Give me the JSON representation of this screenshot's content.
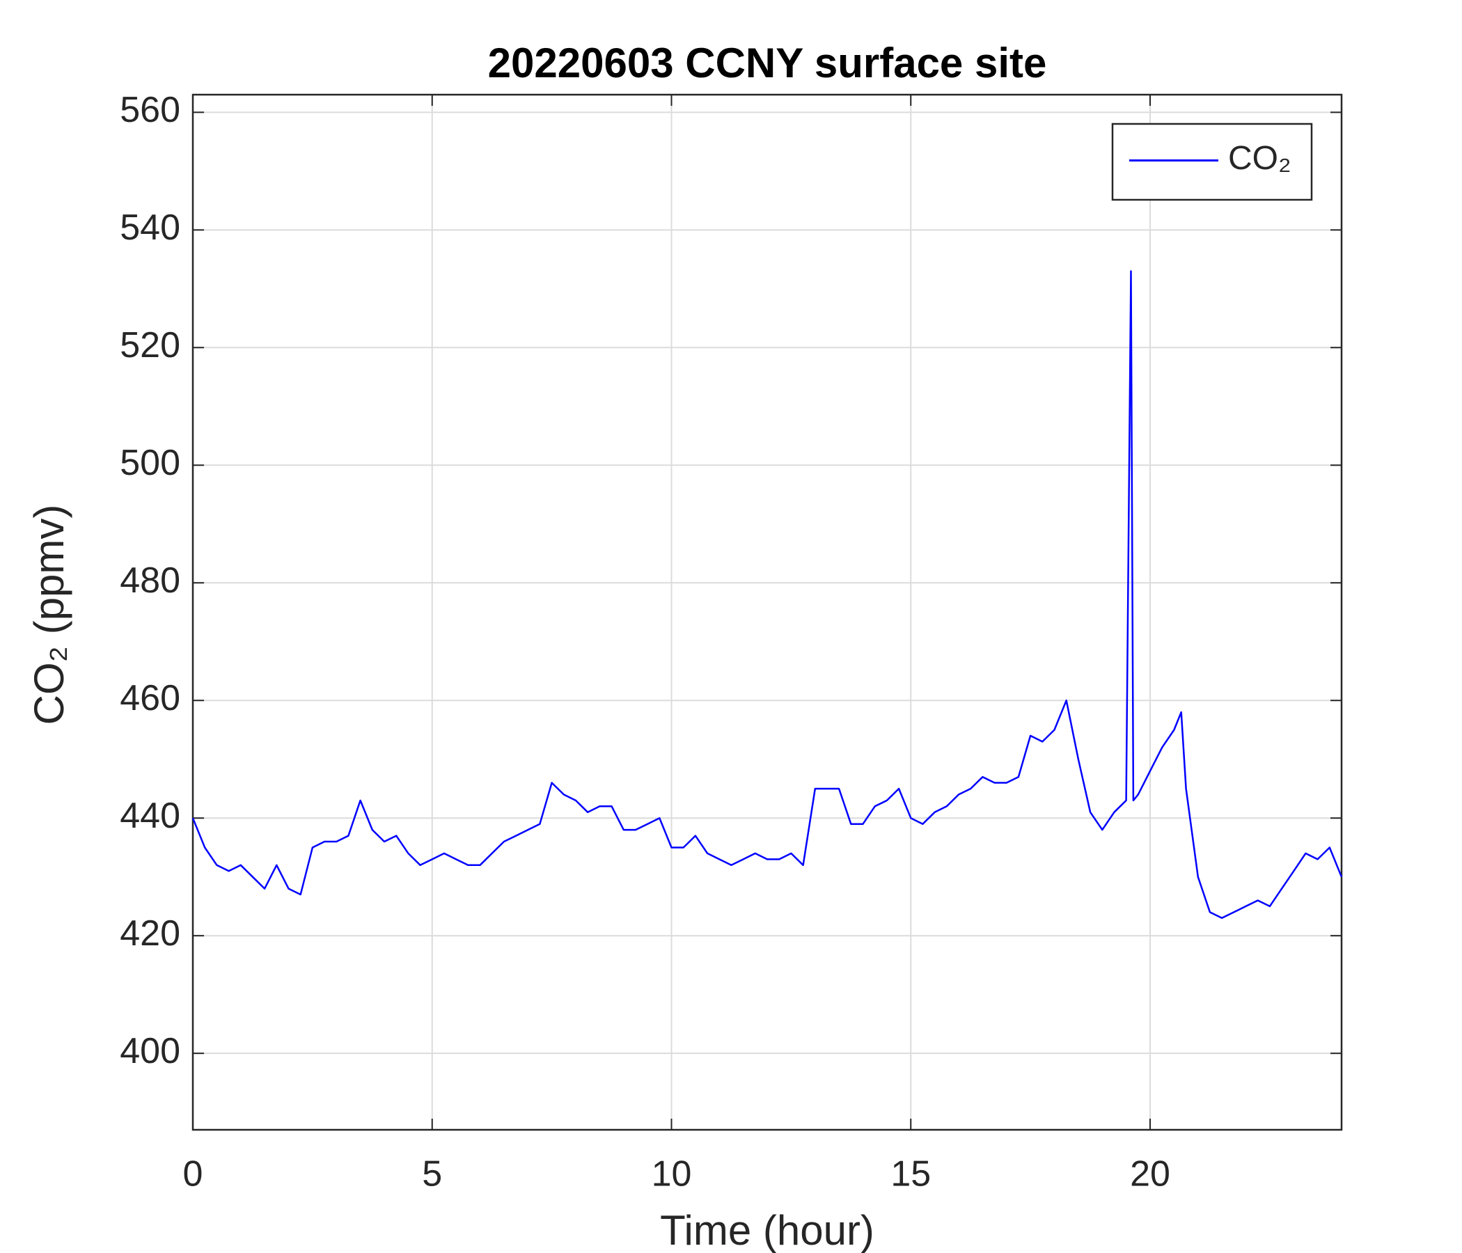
{
  "chart_data": {
    "type": "line",
    "title": "20220603 CCNY surface site",
    "x_label": "Time (hour)",
    "y_label": "CO₂ (ppmv)",
    "x": [
      0,
      0.25,
      0.5,
      0.75,
      1.0,
      1.25,
      1.5,
      1.75,
      2.0,
      2.25,
      2.5,
      2.75,
      3.0,
      3.25,
      3.5,
      3.75,
      4.0,
      4.25,
      4.5,
      4.75,
      5.0,
      5.25,
      5.5,
      5.75,
      6.0,
      6.25,
      6.5,
      6.75,
      7.0,
      7.25,
      7.5,
      7.75,
      8.0,
      8.25,
      8.5,
      8.75,
      9.0,
      9.25,
      9.5,
      9.75,
      10.0,
      10.25,
      10.5,
      10.75,
      11.0,
      11.25,
      11.5,
      11.75,
      12.0,
      12.25,
      12.5,
      12.75,
      13.0,
      13.25,
      13.5,
      13.75,
      14.0,
      14.25,
      14.5,
      14.75,
      15.0,
      15.25,
      15.5,
      15.75,
      16.0,
      16.25,
      16.5,
      16.75,
      17.0,
      17.25,
      17.5,
      17.75,
      18.0,
      18.25,
      18.5,
      18.75,
      19.0,
      19.25,
      19.5,
      19.6,
      19.65,
      19.75,
      20.0,
      20.25,
      20.5,
      20.65,
      20.75,
      21.0,
      21.25,
      21.5,
      21.75,
      22.0,
      22.25,
      22.5,
      22.75,
      23.0,
      23.25,
      23.5,
      23.75,
      24.0
    ],
    "series": [
      {
        "name": "CO₂",
        "color": "#0000ff",
        "values": [
          440,
          435,
          432,
          431,
          432,
          430,
          428,
          432,
          428,
          427,
          435,
          436,
          436,
          437,
          443,
          438,
          436,
          437,
          434,
          432,
          433,
          434,
          433,
          432,
          432,
          434,
          436,
          437,
          438,
          439,
          446,
          444,
          443,
          441,
          442,
          442,
          438,
          438,
          439,
          440,
          435,
          435,
          437,
          434,
          433,
          432,
          433,
          434,
          433,
          433,
          434,
          432,
          445,
          445,
          445,
          439,
          439,
          442,
          443,
          445,
          440,
          439,
          441,
          442,
          444,
          445,
          447,
          446,
          446,
          447,
          454,
          453,
          455,
          460,
          450,
          441,
          438,
          441,
          443,
          533,
          443,
          444,
          448,
          452,
          455,
          458,
          445,
          430,
          424,
          423,
          424,
          425,
          426,
          425,
          428,
          431,
          434,
          433,
          435,
          430
        ]
      }
    ],
    "xlim": [
      0,
      24
    ],
    "xticks": [
      0,
      5,
      10,
      15,
      20
    ],
    "ylim": [
      387,
      563
    ],
    "yticks": [
      400,
      420,
      440,
      460,
      480,
      500,
      520,
      540,
      560
    ],
    "grid": true,
    "legend": "top-right"
  }
}
